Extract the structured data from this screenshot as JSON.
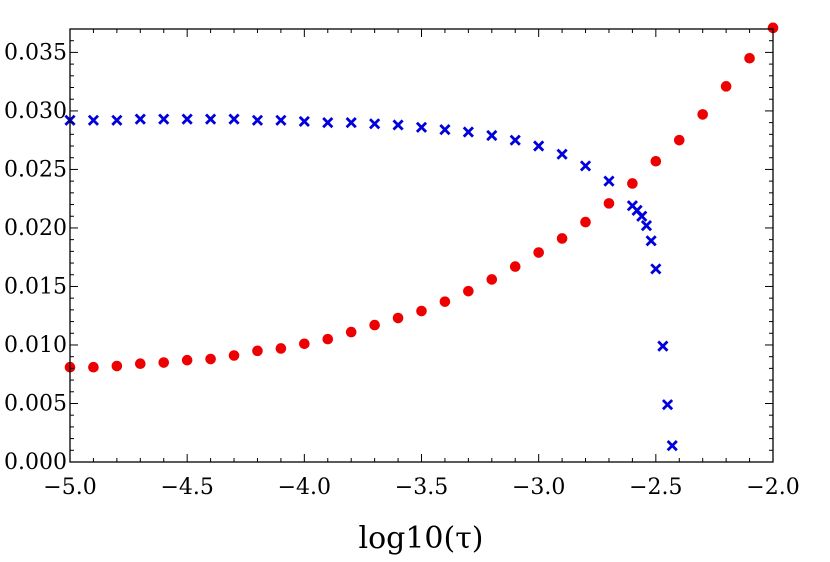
{
  "chart_data": {
    "type": "scatter",
    "title": "",
    "xlabel": "log10(τ)",
    "ylabel": "",
    "xlim": [
      -5.0,
      -2.0
    ],
    "ylim": [
      0.0,
      0.037
    ],
    "x_ticks": [
      -5.0,
      -4.5,
      -4.0,
      -3.5,
      -3.0,
      -2.5,
      -2.0
    ],
    "x_tick_labels": [
      "−5.0",
      "−4.5",
      "−4.0",
      "−3.5",
      "−3.0",
      "−2.5",
      "−2.0"
    ],
    "y_ticks": [
      0.0,
      0.005,
      0.01,
      0.015,
      0.02,
      0.025,
      0.03,
      0.035
    ],
    "y_tick_labels": [
      "0.000",
      "0.005",
      "0.010",
      "0.015",
      "0.020",
      "0.025",
      "0.030",
      "0.035"
    ],
    "grid": false,
    "series": [
      {
        "marker": "cross",
        "color": "#0000dd",
        "x": [
          -5.0,
          -4.9,
          -4.8,
          -4.7,
          -4.6,
          -4.5,
          -4.4,
          -4.3,
          -4.2,
          -4.1,
          -4.0,
          -3.9,
          -3.8,
          -3.7,
          -3.6,
          -3.5,
          -3.4,
          -3.3,
          -3.2,
          -3.1,
          -3.0,
          -2.9,
          -2.8,
          -2.7,
          -2.6,
          -2.58,
          -2.56,
          -2.54,
          -2.52,
          -2.5,
          -2.47,
          -2.45,
          -2.43
        ],
        "y": [
          0.0292,
          0.0292,
          0.0292,
          0.0293,
          0.0293,
          0.0293,
          0.0293,
          0.0293,
          0.0292,
          0.0292,
          0.0291,
          0.029,
          0.029,
          0.0289,
          0.0288,
          0.0286,
          0.0284,
          0.0282,
          0.0279,
          0.0275,
          0.027,
          0.0263,
          0.0253,
          0.024,
          0.0219,
          0.0215,
          0.021,
          0.0202,
          0.0189,
          0.0165,
          0.0099,
          0.0049,
          0.0014
        ]
      },
      {
        "marker": "circle",
        "color": "#ee0000",
        "x": [
          -5.0,
          -4.9,
          -4.8,
          -4.7,
          -4.6,
          -4.5,
          -4.4,
          -4.3,
          -4.2,
          -4.1,
          -4.0,
          -3.9,
          -3.8,
          -3.7,
          -3.6,
          -3.5,
          -3.4,
          -3.3,
          -3.2,
          -3.1,
          -3.0,
          -2.9,
          -2.8,
          -2.7,
          -2.6,
          -2.5,
          -2.4,
          -2.3,
          -2.2,
          -2.1,
          -2.0
        ],
        "y": [
          0.0081,
          0.0081,
          0.0082,
          0.0084,
          0.0085,
          0.0087,
          0.0088,
          0.0091,
          0.0095,
          0.0097,
          0.0101,
          0.0105,
          0.0111,
          0.0117,
          0.0123,
          0.0129,
          0.0137,
          0.0146,
          0.0156,
          0.0167,
          0.0179,
          0.0191,
          0.0205,
          0.0221,
          0.0238,
          0.0257,
          0.0275,
          0.0297,
          0.0321,
          0.0345,
          0.0371
        ]
      }
    ]
  }
}
